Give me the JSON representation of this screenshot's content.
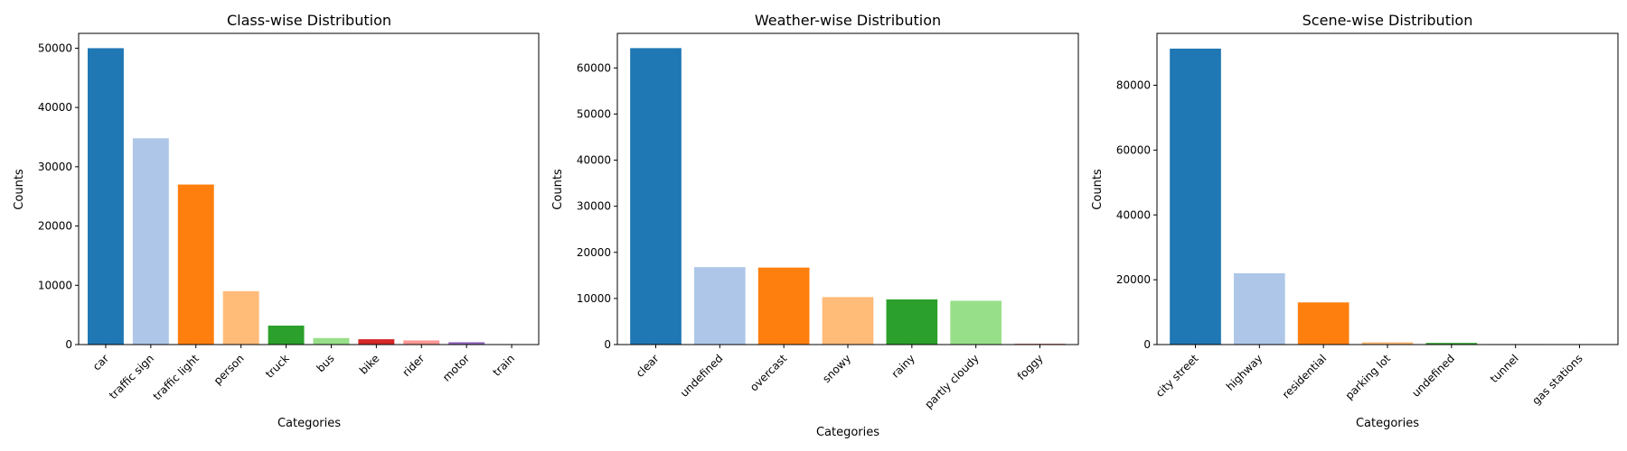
{
  "chart_data": [
    {
      "type": "bar",
      "title": "Class-wise Distribution",
      "xlabel": "Categories",
      "ylabel": "Counts",
      "categories": [
        "car",
        "traffic sign",
        "traffic light",
        "person",
        "truck",
        "bus",
        "bike",
        "rider",
        "motor",
        "train"
      ],
      "values": [
        50000,
        34800,
        27000,
        9000,
        3200,
        1100,
        900,
        700,
        400,
        50
      ],
      "colors": [
        "#1f77b4",
        "#aec7e8",
        "#ff7f0e",
        "#ffbb78",
        "#2ca02c",
        "#98df8a",
        "#d62728",
        "#ff9896",
        "#9467bd",
        "#c5b0d5"
      ],
      "ylim": [
        0,
        52500
      ],
      "yticks": [
        0,
        10000,
        20000,
        30000,
        40000,
        50000
      ],
      "grid": false
    },
    {
      "type": "bar",
      "title": "Weather-wise Distribution",
      "xlabel": "Categories",
      "ylabel": "Counts",
      "categories": [
        "clear",
        "undefined",
        "overcast",
        "snowy",
        "rainy",
        "partly cloudy",
        "foggy"
      ],
      "values": [
        64300,
        16800,
        16700,
        10300,
        9800,
        9500,
        150
      ],
      "colors": [
        "#1f77b4",
        "#aec7e8",
        "#ff7f0e",
        "#ffbb78",
        "#2ca02c",
        "#98df8a",
        "#d62728"
      ],
      "ylim": [
        0,
        67500
      ],
      "yticks": [
        0,
        10000,
        20000,
        30000,
        40000,
        50000,
        60000
      ],
      "grid": false
    },
    {
      "type": "bar",
      "title": "Scene-wise Distribution",
      "xlabel": "Categories",
      "ylabel": "Counts",
      "categories": [
        "city street",
        "highway",
        "residential",
        "parking lot",
        "undefined",
        "tunnel",
        "gas stations"
      ],
      "values": [
        91300,
        22000,
        13000,
        700,
        500,
        150,
        50
      ],
      "colors": [
        "#1f77b4",
        "#aec7e8",
        "#ff7f0e",
        "#ffbb78",
        "#2ca02c",
        "#98df8a",
        "#d62728"
      ],
      "ylim": [
        0,
        96000
      ],
      "yticks": [
        0,
        20000,
        40000,
        60000,
        80000
      ],
      "grid": false
    }
  ]
}
